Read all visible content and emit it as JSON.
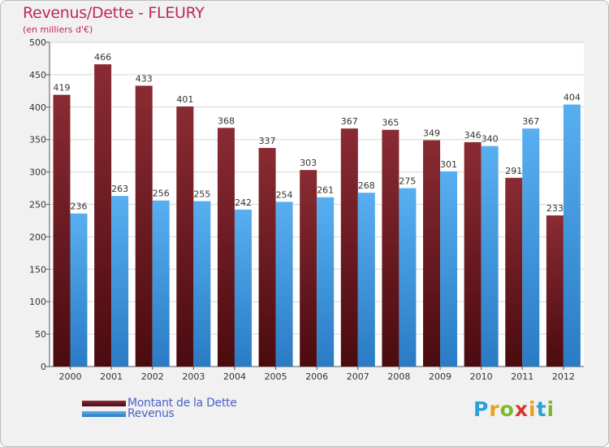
{
  "title": "Revenus/Dette - FLEURY",
  "subtitle": "(en milliers d'€)",
  "logo": {
    "text": "Proxiti",
    "letters": [
      {
        "ch": "P",
        "color": "#2aa0d8"
      },
      {
        "ch": "r",
        "color": "#e8a21a"
      },
      {
        "ch": "o",
        "color": "#7cb82f"
      },
      {
        "ch": "x",
        "color": "#d9342b"
      },
      {
        "ch": "i",
        "color": "#e8a21a"
      },
      {
        "ch": "t",
        "color": "#2aa0d8"
      },
      {
        "ch": "i",
        "color": "#7cb82f"
      }
    ]
  },
  "chart_data": {
    "type": "bar",
    "title": "Revenus/Dette - FLEURY",
    "subtitle": "(en milliers d'€)",
    "categories": [
      "2000",
      "2001",
      "2002",
      "2003",
      "2004",
      "2005",
      "2006",
      "2007",
      "2008",
      "2009",
      "2010",
      "2011",
      "2012"
    ],
    "series": [
      {
        "name": "Montant de la Dette",
        "color": "#7b1e24",
        "values": [
          419,
          466,
          433,
          401,
          368,
          337,
          303,
          367,
          365,
          349,
          346,
          291,
          233
        ]
      },
      {
        "name": "Revenus",
        "color": "#4aa3e6",
        "values": [
          236,
          263,
          256,
          255,
          242,
          254,
          261,
          268,
          275,
          301,
          340,
          367,
          404
        ]
      }
    ],
    "yticks": [
      "0",
      "50",
      "100",
      "150",
      "200",
      "250",
      "300",
      "350",
      "400",
      "450",
      "500"
    ],
    "ylim": [
      0,
      500
    ],
    "grid": true,
    "legend": "bottom-left"
  }
}
